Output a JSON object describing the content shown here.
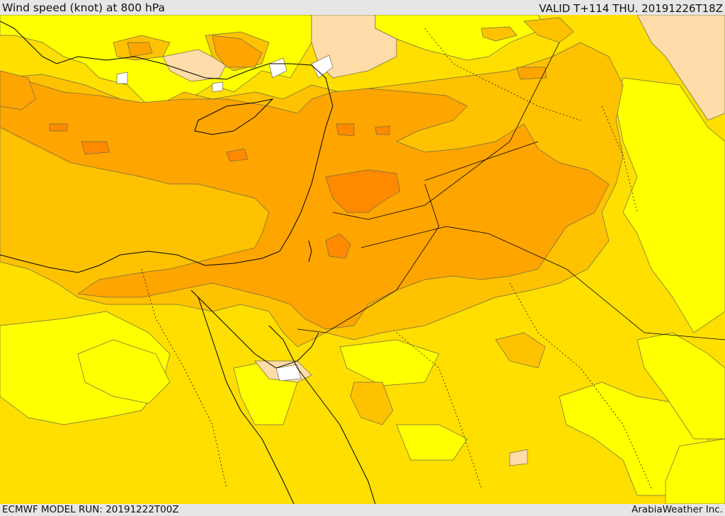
{
  "header": {
    "title": "Wind speed (knot) at 800 hPa",
    "valid": "VALID T+114 THU. 20191226T18Z"
  },
  "footer": {
    "model_run": "ECMWF MODEL RUN: 20191222T00Z",
    "credit": "ArabiaWeather Inc."
  },
  "colors": {
    "band_lt_10": "#ffffff",
    "band_10_15": "#ffdca8",
    "band_15_20": "#ffff00",
    "band_20_25": "#ffdf00",
    "band_25_30": "#ffc200",
    "band_30_35": "#ffa500",
    "band_35_40": "#ff8a00",
    "coastline": "#000000",
    "contour": "#6b6b4a"
  }
}
